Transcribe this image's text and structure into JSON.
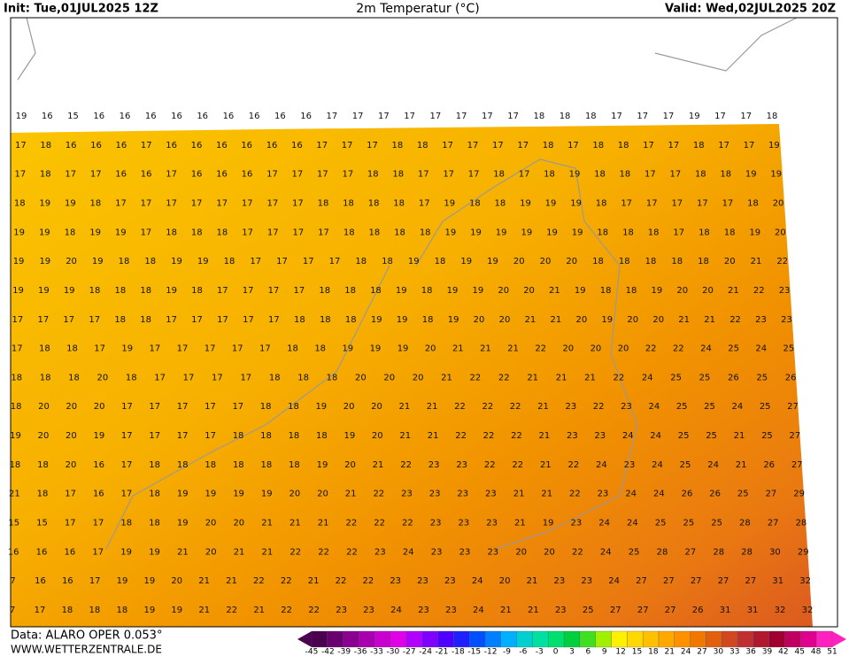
{
  "header": {
    "init": "Init: Tue,01JUL2025 12Z",
    "title": "2m Temperatur (°C)",
    "valid": "Valid: Wed,02JUL2025 20Z"
  },
  "footer": {
    "data": "Data: ALARO OPER 0.053°",
    "url": "WWW.WETTERZENTRALE.DE"
  },
  "grid": {
    "rows": [
      [
        19,
        16,
        15,
        16,
        16,
        16,
        16,
        16,
        16,
        16,
        16,
        16,
        17,
        17,
        17,
        17,
        17,
        17,
        17,
        17,
        18,
        18,
        18,
        17,
        17,
        17,
        19,
        17,
        17,
        18
      ],
      [
        17,
        18,
        16,
        16,
        16,
        17,
        16,
        16,
        16,
        16,
        16,
        16,
        17,
        17,
        17,
        18,
        18,
        17,
        17,
        17,
        17,
        18,
        17,
        18,
        18,
        17,
        17,
        18,
        17,
        17,
        19
      ],
      [
        17,
        18,
        17,
        17,
        16,
        16,
        17,
        16,
        16,
        16,
        17,
        17,
        17,
        17,
        18,
        18,
        17,
        17,
        17,
        18,
        17,
        18,
        19,
        18,
        18,
        17,
        17,
        18,
        18,
        19,
        19
      ],
      [
        18,
        19,
        19,
        18,
        17,
        17,
        17,
        17,
        17,
        17,
        17,
        17,
        18,
        18,
        18,
        18,
        17,
        19,
        18,
        18,
        19,
        19,
        19,
        18,
        17,
        17,
        17,
        17,
        17,
        18,
        20
      ],
      [
        19,
        19,
        18,
        19,
        19,
        17,
        18,
        18,
        18,
        17,
        17,
        17,
        17,
        18,
        18,
        18,
        18,
        19,
        19,
        19,
        19,
        19,
        19,
        18,
        18,
        18,
        17,
        18,
        18,
        19,
        20
      ],
      [
        19,
        19,
        20,
        19,
        18,
        18,
        19,
        19,
        18,
        17,
        17,
        17,
        17,
        18,
        18,
        19,
        18,
        19,
        19,
        20,
        20,
        20,
        18,
        18,
        18,
        18,
        18,
        20,
        21,
        22
      ],
      [
        19,
        19,
        19,
        18,
        18,
        18,
        19,
        18,
        17,
        17,
        17,
        17,
        18,
        18,
        18,
        19,
        18,
        19,
        19,
        20,
        20,
        21,
        19,
        18,
        18,
        19,
        20,
        20,
        21,
        22,
        23
      ],
      [
        17,
        17,
        17,
        17,
        18,
        18,
        17,
        17,
        17,
        17,
        17,
        18,
        18,
        18,
        19,
        19,
        18,
        19,
        20,
        20,
        21,
        21,
        20,
        19,
        20,
        20,
        21,
        21,
        22,
        23,
        23
      ],
      [
        17,
        18,
        18,
        17,
        19,
        17,
        17,
        17,
        17,
        17,
        18,
        18,
        19,
        19,
        19,
        20,
        21,
        21,
        21,
        22,
        20,
        20,
        20,
        22,
        22,
        24,
        25,
        24,
        25
      ],
      [
        18,
        18,
        18,
        20,
        18,
        17,
        17,
        17,
        17,
        18,
        18,
        18,
        20,
        20,
        20,
        21,
        22,
        22,
        21,
        21,
        21,
        22,
        24,
        25,
        25,
        26,
        25,
        26
      ],
      [
        18,
        20,
        20,
        20,
        17,
        17,
        17,
        17,
        17,
        18,
        18,
        19,
        20,
        20,
        21,
        21,
        22,
        22,
        22,
        21,
        23,
        22,
        23,
        24,
        25,
        25,
        24,
        25,
        27
      ],
      [
        19,
        20,
        20,
        19,
        17,
        17,
        17,
        17,
        18,
        18,
        18,
        18,
        19,
        20,
        21,
        21,
        22,
        22,
        22,
        21,
        23,
        23,
        24,
        24,
        25,
        25,
        21,
        25,
        27
      ],
      [
        18,
        18,
        20,
        16,
        17,
        18,
        18,
        18,
        18,
        18,
        18,
        19,
        20,
        21,
        22,
        23,
        23,
        22,
        22,
        21,
        22,
        24,
        23,
        24,
        25,
        24,
        21,
        26,
        27
      ],
      [
        21,
        18,
        17,
        16,
        17,
        18,
        19,
        19,
        19,
        19,
        20,
        20,
        21,
        22,
        23,
        23,
        23,
        23,
        21,
        21,
        22,
        23,
        24,
        24,
        26,
        26,
        25,
        27,
        29
      ],
      [
        15,
        15,
        17,
        17,
        18,
        18,
        19,
        20,
        20,
        21,
        21,
        21,
        22,
        22,
        22,
        23,
        23,
        23,
        21,
        19,
        23,
        24,
        24,
        25,
        25,
        25,
        28,
        27,
        28
      ],
      [
        16,
        16,
        16,
        17,
        19,
        19,
        21,
        20,
        21,
        21,
        22,
        22,
        22,
        23,
        24,
        23,
        23,
        23,
        20,
        20,
        22,
        24,
        25,
        28,
        27,
        28,
        28,
        30,
        29
      ],
      [
        7,
        16,
        16,
        17,
        19,
        19,
        20,
        21,
        21,
        22,
        22,
        21,
        22,
        22,
        23,
        23,
        23,
        24,
        20,
        21,
        23,
        23,
        24,
        27,
        27,
        27,
        27,
        27,
        31,
        32
      ],
      [
        7,
        17,
        18,
        18,
        18,
        19,
        19,
        21,
        22,
        21,
        22,
        22,
        23,
        23,
        24,
        23,
        23,
        24,
        21,
        21,
        23,
        25,
        27,
        27,
        27,
        26,
        31,
        31,
        32,
        32
      ]
    ]
  },
  "colorbar": {
    "labels": [
      -45,
      -42,
      -39,
      -36,
      -33,
      -30,
      -27,
      -24,
      -21,
      -18,
      -15,
      -12,
      -9,
      -6,
      -3,
      0,
      3,
      6,
      9,
      12,
      15,
      18,
      21,
      24,
      27,
      30,
      33,
      36,
      39,
      42,
      45,
      48,
      51
    ],
    "colors": [
      "#4b0050",
      "#6a0070",
      "#8b0090",
      "#a800b0",
      "#c800d0",
      "#e000e8",
      "#b000ff",
      "#8000ff",
      "#5000ff",
      "#2020ff",
      "#0050ff",
      "#0080ff",
      "#00b0ff",
      "#00d0d0",
      "#00e0a0",
      "#00e070",
      "#00d040",
      "#40e020",
      "#a0f000",
      "#fff000",
      "#ffd800",
      "#ffc000",
      "#ffa800",
      "#ff9000",
      "#f07800",
      "#e06010",
      "#d04820",
      "#c03030",
      "#b01830",
      "#a00030",
      "#c00060",
      "#e00090",
      "#ff20c0"
    ]
  }
}
